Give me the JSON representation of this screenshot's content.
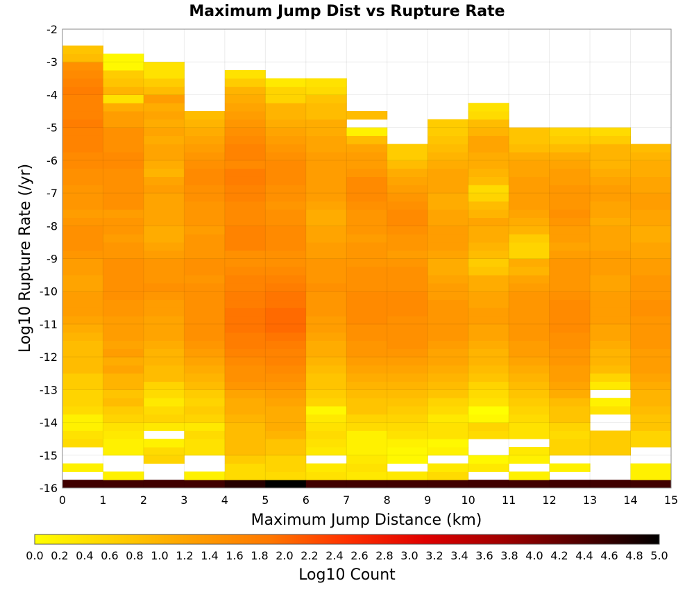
{
  "chart_data": {
    "type": "heatmap",
    "title": "Maximum Jump Dist vs Rupture Rate",
    "xlabel": "Maximum Jump Distance (km)",
    "ylabel": "Log10 Rupture Rate (/yr)",
    "xlim": [
      0,
      15
    ],
    "ylim": [
      -16,
      -2
    ],
    "x_ticks": [
      "0",
      "1",
      "2",
      "3",
      "4",
      "5",
      "6",
      "7",
      "8",
      "9",
      "10",
      "11",
      "12",
      "13",
      "14",
      "15"
    ],
    "y_ticks": [
      "-2",
      "-3",
      "-4",
      "-5",
      "-6",
      "-7",
      "-8",
      "-9",
      "-10",
      "-11",
      "-12",
      "-13",
      "-14",
      "-15",
      "-16"
    ],
    "grid": true,
    "x_bin_width": 1,
    "y_bin_height": 0.25,
    "y_bin_origin": -16,
    "colorbar": {
      "label": "Log10 Count",
      "min": 0.0,
      "max": 5.0,
      "ticks": [
        "0.0",
        "0.2",
        "0.4",
        "0.6",
        "0.8",
        "1.0",
        "1.2",
        "1.4",
        "1.6",
        "1.8",
        "2.0",
        "2.2",
        "2.4",
        "2.6",
        "2.8",
        "3.0",
        "3.2",
        "3.4",
        "3.6",
        "3.8",
        "4.0",
        "4.2",
        "4.4",
        "4.6",
        "4.8",
        "5.0"
      ],
      "colors": [
        "#ffff00",
        "#ffd200",
        "#ffa000",
        "#ff7800",
        "#ff3000",
        "#e00000",
        "#a00000",
        "#500000",
        "#000000"
      ]
    },
    "columns_note": "each column lists log10 counts for y bins from -16 upward; null = empty",
    "columns": [
      [
        4.5,
        null,
        0.2,
        null,
        null,
        0.5,
        0.4,
        0.2,
        0.2,
        0.5,
        0.6,
        0.6,
        0.7,
        0.7,
        0.9,
        0.9,
        0.9,
        0.9,
        1.0,
        1.1,
        1.2,
        1.3,
        1.3,
        1.3,
        1.2,
        1.2,
        1.3,
        1.3,
        1.4,
        1.5,
        1.5,
        1.5,
        1.4,
        1.3,
        1.4,
        1.4,
        1.4,
        1.5,
        1.5,
        1.6,
        1.6,
        1.7,
        1.7,
        1.7,
        1.8,
        1.7,
        1.7,
        1.7,
        1.8,
        1.7,
        1.6,
        1.5,
        0.9,
        0.8
      ],
      [
        4.5,
        0.2,
        null,
        null,
        0.2,
        0.2,
        0.3,
        0.4,
        0.6,
        0.7,
        0.9,
        0.8,
        1.0,
        1.0,
        1.2,
        1.1,
        1.3,
        1.2,
        1.3,
        1.3,
        1.3,
        1.4,
        1.4,
        1.5,
        1.5,
        1.5,
        1.5,
        1.5,
        1.4,
        1.4,
        1.3,
        1.4,
        1.4,
        1.3,
        1.5,
        1.5,
        1.5,
        1.5,
        1.5,
        1.6,
        1.6,
        1.5,
        1.5,
        1.5,
        1.3,
        1.3,
        1.1,
        0.4,
        1.0,
        0.8,
        0.7,
        0.1,
        0.1
      ],
      [
        4.5,
        null,
        null,
        0.6,
        0.5,
        0.2,
        null,
        0.3,
        0.6,
        0.5,
        0.3,
        0.5,
        0.6,
        0.9,
        0.9,
        1.0,
        1.0,
        1.1,
        1.2,
        1.2,
        1.2,
        1.3,
        1.3,
        1.4,
        1.5,
        1.4,
        1.4,
        1.4,
        1.3,
        1.2,
        1.1,
        1.1,
        1.2,
        1.2,
        1.2,
        1.2,
        1.3,
        1.2,
        1.0,
        1.1,
        1.2,
        1.2,
        1.1,
        1.2,
        1.1,
        1.2,
        1.1,
        1.3,
        0.9,
        0.7,
        0.4,
        0.4
      ],
      [
        4.5,
        0.2,
        null,
        null,
        0.4,
        0.4,
        0.5,
        0.3,
        0.6,
        0.7,
        0.6,
        0.7,
        0.9,
        1.0,
        1.1,
        1.2,
        1.3,
        1.4,
        1.5,
        1.5,
        1.5,
        1.5,
        1.5,
        1.5,
        1.5,
        1.4,
        1.5,
        1.5,
        1.4,
        1.4,
        1.4,
        1.3,
        1.4,
        1.4,
        1.4,
        1.5,
        1.5,
        1.6,
        1.6,
        1.5,
        1.4,
        1.3,
        1.2,
        1.1,
        1.0,
        0.9
      ],
      [
        4.7,
        0.5,
        0.5,
        0.7,
        0.9,
        0.9,
        0.9,
        0.9,
        1.0,
        1.1,
        1.1,
        1.2,
        1.4,
        1.5,
        1.5,
        1.6,
        1.7,
        1.8,
        1.8,
        1.9,
        1.9,
        1.9,
        1.8,
        1.8,
        1.7,
        1.7,
        1.6,
        1.5,
        1.5,
        1.7,
        1.7,
        1.7,
        1.6,
        1.6,
        1.6,
        1.7,
        1.7,
        1.8,
        1.8,
        1.6,
        1.7,
        1.7,
        1.6,
        1.5,
        1.4,
        1.3,
        1.2,
        1.1,
        1.0,
        0.7,
        0.4
      ],
      [
        5.0,
        0.5,
        0.6,
        0.6,
        0.8,
        0.8,
        1.0,
        1.1,
        1.1,
        1.1,
        1.2,
        1.3,
        1.4,
        1.5,
        1.6,
        1.7,
        1.7,
        1.8,
        1.9,
        2.0,
        2.0,
        2.0,
        1.9,
        1.9,
        1.8,
        1.7,
        1.6,
        1.5,
        1.5,
        1.6,
        1.6,
        1.6,
        1.5,
        1.5,
        1.4,
        1.5,
        1.5,
        1.6,
        1.6,
        1.6,
        1.5,
        1.4,
        1.3,
        1.2,
        1.1,
        1.0,
        1.0,
        0.6,
        0.6,
        0.3
      ],
      [
        4.5,
        0.4,
        0.3,
        null,
        0.3,
        0.4,
        0.5,
        0.4,
        0.3,
        0.1,
        0.6,
        0.7,
        0.8,
        0.8,
        0.9,
        1.0,
        1.1,
        1.1,
        1.2,
        1.3,
        1.3,
        1.4,
        1.4,
        1.4,
        1.5,
        1.4,
        1.4,
        1.4,
        1.3,
        1.3,
        1.2,
        1.2,
        1.1,
        1.1,
        1.2,
        1.3,
        1.3,
        1.3,
        1.3,
        1.3,
        1.3,
        1.2,
        1.2,
        1.1,
        1.1,
        0.9,
        0.9,
        0.8,
        0.5,
        0.4
      ],
      [
        4.5,
        0.3,
        0.4,
        0.3,
        0.2,
        0.2,
        0.2,
        0.5,
        0.6,
        0.8,
        0.8,
        0.9,
        1.0,
        1.1,
        1.2,
        1.3,
        1.4,
        1.4,
        1.5,
        1.5,
        1.6,
        1.6,
        1.6,
        1.6,
        1.5,
        1.5,
        1.5,
        1.4,
        1.4,
        1.4,
        1.3,
        1.4,
        1.4,
        1.4,
        1.5,
        1.6,
        1.6,
        1.6,
        1.4,
        1.3,
        1.3,
        1.2,
        0.9,
        0.2,
        null,
        0.9
      ],
      [
        4.5,
        0.3,
        null,
        0.1,
        0.1,
        0.2,
        0.4,
        0.5,
        0.6,
        0.7,
        0.8,
        0.9,
        1.0,
        1.1,
        1.2,
        1.3,
        1.4,
        1.5,
        1.5,
        1.5,
        1.5,
        1.6,
        1.6,
        1.6,
        1.5,
        1.5,
        1.5,
        1.4,
        1.3,
        1.4,
        1.4,
        1.5,
        1.6,
        1.6,
        1.5,
        1.4,
        1.3,
        1.2,
        1.1,
        0.9,
        0.7,
        0.7
      ],
      [
        4.5,
        0.5,
        0.3,
        null,
        0.2,
        0.1,
        0.4,
        0.4,
        0.3,
        0.5,
        0.6,
        0.8,
        0.9,
        1.0,
        1.1,
        1.2,
        1.2,
        1.3,
        1.4,
        1.4,
        1.4,
        1.4,
        1.4,
        1.3,
        1.3,
        1.2,
        1.1,
        1.1,
        1.2,
        1.3,
        1.3,
        1.3,
        1.2,
        1.2,
        1.1,
        1.1,
        1.2,
        1.2,
        1.2,
        1.1,
        1.0,
        0.9,
        0.8,
        0.7,
        0.7
      ],
      [
        4.5,
        null,
        0.3,
        0.1,
        null,
        null,
        0.5,
        0.6,
        0.1,
        0.0,
        0.4,
        0.5,
        0.6,
        0.8,
        0.9,
        1.0,
        1.0,
        1.1,
        1.2,
        1.2,
        1.3,
        1.3,
        1.2,
        1.2,
        1.1,
        1.1,
        0.8,
        0.7,
        0.9,
        1.0,
        1.1,
        1.1,
        1.2,
        1.0,
        0.9,
        0.6,
        0.5,
        0.9,
        1.0,
        1.1,
        1.1,
        1.2,
        1.2,
        1.0,
        0.9,
        0.5,
        0.4
      ],
      [
        4.5,
        0.2,
        null,
        0.2,
        0.3,
        null,
        0.4,
        0.4,
        0.5,
        0.6,
        0.7,
        0.8,
        0.9,
        1.0,
        1.1,
        1.2,
        1.3,
        1.3,
        1.4,
        1.4,
        1.4,
        1.4,
        1.4,
        1.4,
        1.3,
        1.2,
        1.0,
        1.1,
        0.6,
        0.6,
        0.7,
        1.0,
        1.1,
        1.2,
        1.3,
        1.3,
        1.3,
        1.3,
        1.2,
        1.2,
        1.1,
        0.9,
        0.8,
        0.8
      ],
      [
        4.5,
        null,
        0.2,
        null,
        0.6,
        0.6,
        0.5,
        0.6,
        0.8,
        0.8,
        0.9,
        1.1,
        1.2,
        1.3,
        1.3,
        1.4,
        1.4,
        1.5,
        1.5,
        1.6,
        1.6,
        1.6,
        1.6,
        1.5,
        1.4,
        1.4,
        1.4,
        1.4,
        1.3,
        1.2,
        1.3,
        1.3,
        1.4,
        1.5,
        1.4,
        1.4,
        1.4,
        1.3,
        1.3,
        1.2,
        1.1,
        0.9,
        0.7,
        0.6
      ],
      [
        4.5,
        null,
        null,
        null,
        0.7,
        0.7,
        0.7,
        null,
        null,
        0.4,
        0.2,
        null,
        0.3,
        0.6,
        0.9,
        1.0,
        1.0,
        1.1,
        1.2,
        1.2,
        1.3,
        1.3,
        1.3,
        1.3,
        1.2,
        1.2,
        1.3,
        1.3,
        1.3,
        1.2,
        1.2,
        1.2,
        1.1,
        1.2,
        1.2,
        1.3,
        1.3,
        1.2,
        1.1,
        1.0,
        1.0,
        1.0,
        0.7,
        0.5
      ],
      [
        4.5,
        0.2,
        0.2,
        null,
        null,
        0.6,
        0.6,
        0.8,
        0.8,
        0.9,
        1.0,
        1.0,
        1.1,
        1.2,
        1.3,
        1.3,
        1.3,
        1.4,
        1.4,
        1.4,
        1.4,
        1.5,
        1.5,
        1.4,
        1.4,
        1.4,
        1.3,
        1.3,
        1.2,
        1.2,
        1.1,
        1.1,
        1.2,
        1.2,
        1.3,
        1.3,
        1.2,
        1.2,
        1.1,
        1.1,
        1.0,
        0.9
      ]
    ]
  }
}
